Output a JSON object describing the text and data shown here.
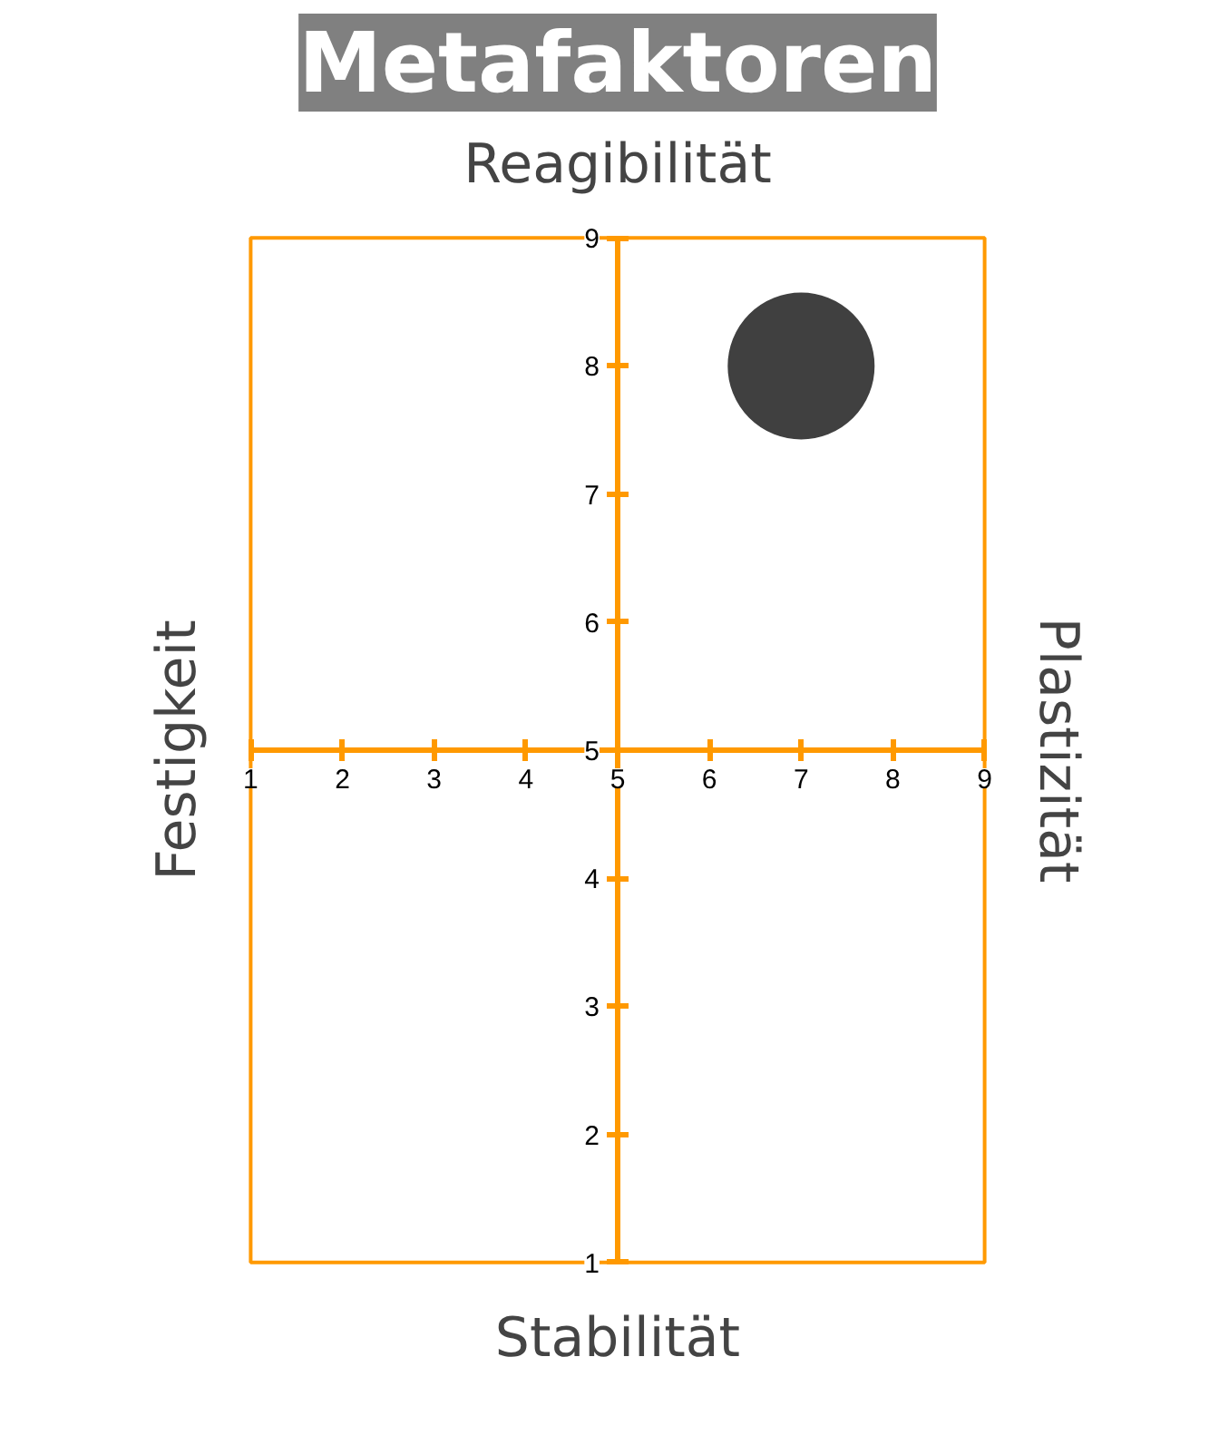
{
  "chart_data": {
    "type": "scatter",
    "title": "Metafaktoren",
    "xlabel": "Stabilität",
    "x2label": "Reagibilität",
    "ylabel": "Festigkeit",
    "y2label": "Plastizität",
    "x": [
      7
    ],
    "series": [
      {
        "color": "#404040",
        "values": [
          8
        ]
      }
    ],
    "xlim": [
      1,
      9
    ],
    "ylim": [
      1,
      9
    ],
    "xticks": [
      1,
      2,
      3,
      4,
      5,
      6,
      7,
      8,
      9
    ],
    "yticks": [
      1,
      2,
      3,
      4,
      5,
      6,
      7,
      8,
      9
    ],
    "grid": false,
    "marker": "circle"
  }
}
